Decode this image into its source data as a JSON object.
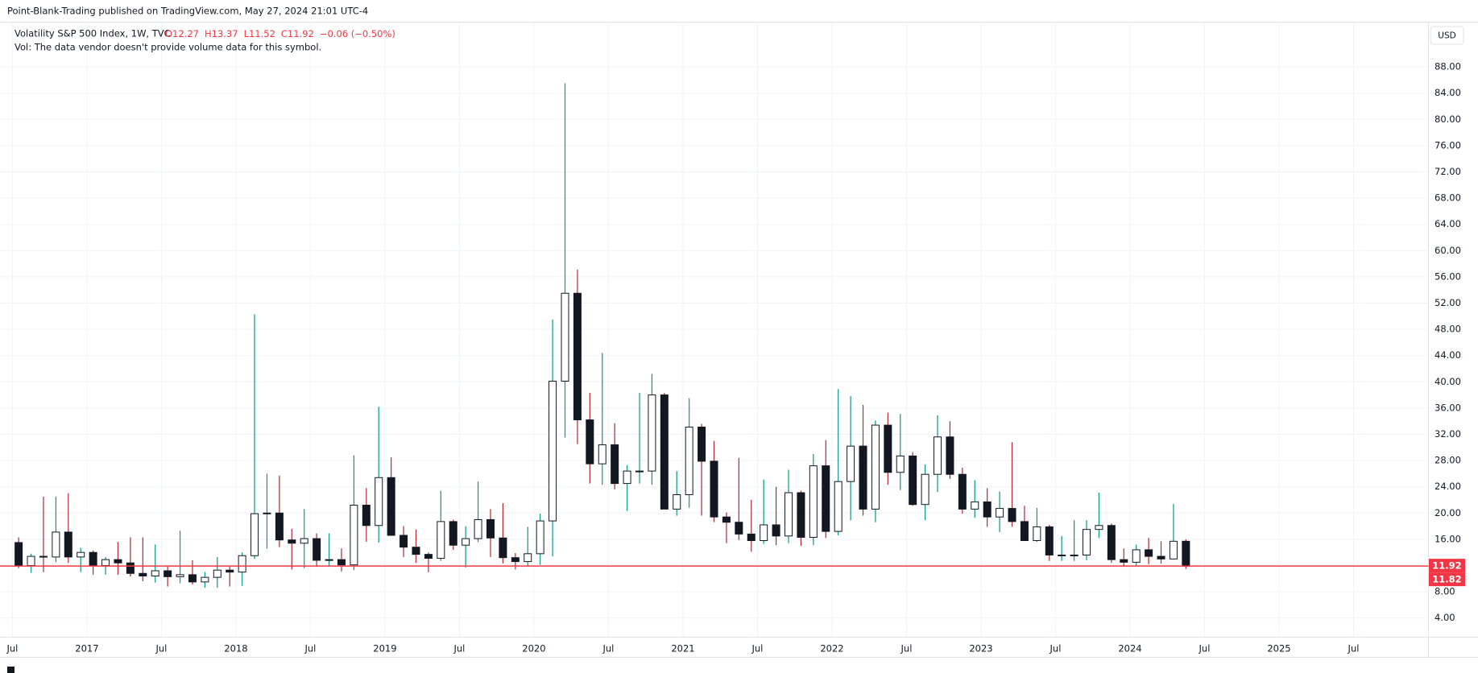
{
  "header": "Point-Blank-Trading published on TradingView.com, May 27, 2024 21:01 UTC-4",
  "currency": "USD",
  "chart_data": {
    "type": "candlestick",
    "legend": {
      "symbol": "Volatility S&P 500 Index, 1W, TVC",
      "ohlc": [
        "O12.27",
        "H13.37",
        "L11.52",
        "C11.92",
        "−0.06 (−0.50%)"
      ],
      "volume_note": "Vol: The data vendor doesn't provide volume data for this symbol."
    },
    "up_body": "#ffffff",
    "down_body": "#131722",
    "up_wick": "#089981",
    "down_wick": "#b22833",
    "outline": "#131722",
    "price_color": "#f23645",
    "price_labels": [
      11.92,
      11.82
    ],
    "grid": true,
    "ylim": [
      1.14,
      94.76
    ],
    "yticks": [
      {
        "value": 4,
        "label": "4.00"
      },
      {
        "value": 8,
        "label": "8.00"
      },
      {
        "value": 16,
        "label": "16.00"
      },
      {
        "value": 20,
        "label": "20.00"
      },
      {
        "value": 24,
        "label": "24.00"
      },
      {
        "value": 28,
        "label": "28.00"
      },
      {
        "value": 32,
        "label": "32.00"
      },
      {
        "value": 36,
        "label": "36.00"
      },
      {
        "value": 40,
        "label": "40.00"
      },
      {
        "value": 44,
        "label": "44.00"
      },
      {
        "value": 48,
        "label": "48.00"
      },
      {
        "value": 52,
        "label": "52.00"
      },
      {
        "value": 56,
        "label": "56.00"
      },
      {
        "value": 60,
        "label": "60.00"
      },
      {
        "value": 64,
        "label": "64.00"
      },
      {
        "value": 68,
        "label": "68.00"
      },
      {
        "value": 72,
        "label": "72.00"
      },
      {
        "value": 76,
        "label": "76.00"
      },
      {
        "value": 80,
        "label": "80.00"
      },
      {
        "value": 84,
        "label": "84.00"
      },
      {
        "value": 88,
        "label": "88.00"
      }
    ],
    "xlim": [
      "2016-06",
      "2026-01"
    ],
    "xticks": [
      {
        "value": "2016-07",
        "label": "Jul"
      },
      {
        "value": "2017-01",
        "label": "2017"
      },
      {
        "value": "2017-07",
        "label": "Jul"
      },
      {
        "value": "2018-01",
        "label": "2018"
      },
      {
        "value": "2018-07",
        "label": "Jul"
      },
      {
        "value": "2019-01",
        "label": "2019"
      },
      {
        "value": "2019-07",
        "label": "Jul"
      },
      {
        "value": "2020-01",
        "label": "2020"
      },
      {
        "value": "2020-07",
        "label": "Jul"
      },
      {
        "value": "2021-01",
        "label": "2021"
      },
      {
        "value": "2021-07",
        "label": "Jul"
      },
      {
        "value": "2022-01",
        "label": "2022"
      },
      {
        "value": "2022-07",
        "label": "Jul"
      },
      {
        "value": "2023-01",
        "label": "2023"
      },
      {
        "value": "2023-07",
        "label": "Jul"
      },
      {
        "value": "2024-01",
        "label": "2024"
      },
      {
        "value": "2024-07",
        "label": "Jul"
      },
      {
        "value": "2025-01",
        "label": "2025"
      },
      {
        "value": "2025-07",
        "label": "Jul"
      }
    ],
    "x": [
      "2016-07",
      "2016-08",
      "2016-09",
      "2016-10",
      "2016-11",
      "2016-12",
      "2017-01",
      "2017-02",
      "2017-03",
      "2017-04",
      "2017-05",
      "2017-06",
      "2017-07",
      "2017-08",
      "2017-09",
      "2017-10",
      "2017-11",
      "2017-12",
      "2018-01",
      "2018-02",
      "2018-03",
      "2018-04",
      "2018-05",
      "2018-06",
      "2018-07",
      "2018-08",
      "2018-09",
      "2018-10",
      "2018-11",
      "2018-12",
      "2019-01",
      "2019-02",
      "2019-03",
      "2019-04",
      "2019-05",
      "2019-06",
      "2019-07",
      "2019-08",
      "2019-09",
      "2019-10",
      "2019-11",
      "2019-12",
      "2020-01",
      "2020-02",
      "2020-03",
      "2020-04",
      "2020-05",
      "2020-06",
      "2020-07",
      "2020-08",
      "2020-09",
      "2020-10",
      "2020-11",
      "2020-12",
      "2021-01",
      "2021-02",
      "2021-03",
      "2021-04",
      "2021-05",
      "2021-06",
      "2021-07",
      "2021-08",
      "2021-09",
      "2021-10",
      "2021-11",
      "2021-12",
      "2022-01",
      "2022-02",
      "2022-03",
      "2022-04",
      "2022-05",
      "2022-06",
      "2022-07",
      "2022-08",
      "2022-09",
      "2022-10",
      "2022-11",
      "2022-12",
      "2023-01",
      "2023-02",
      "2023-03",
      "2023-04",
      "2023-05",
      "2023-06",
      "2023-07",
      "2023-08",
      "2023-09",
      "2023-10",
      "2023-11",
      "2023-12",
      "2024-01",
      "2024-02",
      "2024-03",
      "2024-04",
      "2024-05"
    ],
    "open": [
      15.5,
      12.0,
      13.4,
      13.3,
      17.1,
      13.3,
      14.0,
      12.0,
      12.9,
      12.4,
      10.8,
      10.4,
      11.2,
      10.3,
      10.6,
      9.5,
      10.2,
      11.3,
      11.0,
      13.5,
      19.9,
      20.0,
      15.9,
      15.4,
      16.1,
      12.8,
      12.9,
      12.1,
      21.2,
      18.1,
      25.4,
      16.6,
      14.8,
      13.7,
      13.1,
      18.7,
      15.1,
      16.1,
      19.0,
      16.2,
      13.2,
      12.6,
      13.8,
      18.8,
      40.1,
      53.5,
      34.2,
      27.5,
      30.4,
      24.5,
      26.4,
      26.4,
      38.0,
      20.6,
      22.8,
      33.1,
      27.9,
      19.4,
      18.6,
      16.8,
      15.8,
      18.2,
      16.5,
      23.1,
      16.3,
      27.2,
      17.2,
      24.8,
      30.2,
      20.6,
      33.4,
      26.2,
      28.7,
      21.3,
      25.9,
      31.6,
      25.9,
      20.6,
      21.7,
      19.4,
      20.7,
      18.7,
      15.8,
      17.9,
      13.6,
      13.6,
      13.6,
      17.5,
      18.1,
      12.9,
      12.5,
      14.4,
      13.4,
      13.0,
      15.7
    ],
    "high": [
      16.3,
      13.8,
      22.5,
      22.5,
      23.0,
      14.7,
      14.3,
      13.3,
      15.6,
      16.3,
      16.3,
      15.2,
      12.0,
      17.3,
      12.8,
      11.0,
      13.3,
      12.0,
      14.0,
      50.3,
      26.0,
      25.7,
      17.6,
      20.6,
      16.9,
      16.9,
      14.6,
      28.8,
      23.8,
      36.2,
      28.5,
      18.0,
      17.5,
      14.0,
      23.4,
      19.0,
      18.0,
      24.8,
      20.6,
      21.5,
      13.9,
      17.9,
      19.9,
      49.5,
      85.5,
      57.1,
      38.3,
      44.4,
      33.7,
      27.3,
      38.3,
      41.2,
      38.3,
      26.4,
      37.5,
      33.6,
      31.0,
      20.1,
      28.4,
      22.0,
      25.1,
      24.0,
      26.6,
      23.4,
      28.99,
      31.1,
      38.9,
      37.8,
      36.5,
      34.1,
      35.3,
      35.1,
      29.3,
      27.4,
      34.9,
      34.0,
      26.9,
      25.0,
      23.8,
      23.3,
      30.8,
      21.1,
      20.8,
      18.2,
      16.5,
      18.9,
      18.9,
      23.1,
      18.4,
      14.6,
      15.2,
      16.2,
      15.7,
      21.4,
      16.0
    ],
    "low": [
      11.6,
      10.9,
      11.0,
      12.5,
      12.4,
      11.0,
      10.6,
      10.6,
      10.6,
      10.3,
      9.6,
      9.4,
      8.8,
      9.3,
      9.1,
      8.6,
      8.6,
      8.8,
      8.9,
      13.0,
      14.6,
      14.8,
      11.4,
      11.6,
      11.8,
      11.8,
      11.1,
      11.3,
      15.6,
      15.5,
      16.6,
      13.3,
      12.4,
      11.0,
      12.7,
      14.4,
      11.7,
      15.6,
      13.3,
      12.3,
      11.4,
      11.8,
      12.1,
      13.4,
      31.5,
      30.5,
      24.5,
      24.3,
      23.6,
      20.3,
      24.5,
      24.3,
      20.7,
      19.6,
      20.8,
      19.6,
      18.6,
      15.4,
      15.9,
      14.1,
      15.3,
      15.1,
      15.4,
      15.0,
      15.1,
      16.2,
      16.6,
      18.9,
      19.6,
      18.6,
      24.3,
      23.5,
      21.1,
      18.9,
      23.2,
      25.2,
      19.9,
      19.3,
      17.9,
      17.1,
      17.9,
      15.8,
      15.6,
      12.7,
      12.7,
      12.7,
      12.8,
      16.2,
      12.4,
      11.8,
      11.9,
      12.2,
      12.3,
      12.9,
      11.5
    ],
    "close": [
      12.0,
      13.4,
      13.3,
      17.1,
      13.3,
      14.0,
      12.0,
      12.9,
      12.4,
      10.8,
      10.4,
      11.2,
      10.3,
      10.6,
      9.5,
      10.2,
      11.3,
      11.0,
      13.5,
      19.9,
      20.0,
      15.9,
      15.4,
      16.1,
      12.8,
      12.9,
      12.1,
      21.2,
      18.1,
      25.4,
      16.6,
      14.8,
      13.7,
      13.1,
      18.7,
      15.1,
      16.1,
      19.0,
      16.2,
      13.2,
      12.6,
      13.8,
      18.8,
      40.1,
      53.5,
      34.2,
      27.5,
      30.4,
      24.5,
      26.4,
      26.4,
      38.0,
      20.6,
      22.8,
      33.1,
      27.9,
      19.4,
      18.6,
      16.8,
      15.8,
      18.2,
      16.5,
      23.1,
      16.3,
      27.2,
      17.2,
      24.8,
      30.2,
      20.6,
      33.4,
      26.2,
      28.7,
      21.3,
      25.9,
      31.6,
      25.9,
      20.6,
      21.7,
      19.4,
      20.7,
      18.7,
      15.8,
      17.9,
      13.6,
      13.6,
      13.6,
      17.5,
      18.1,
      12.9,
      12.5,
      14.4,
      13.4,
      13.0,
      15.7,
      11.9
    ]
  }
}
